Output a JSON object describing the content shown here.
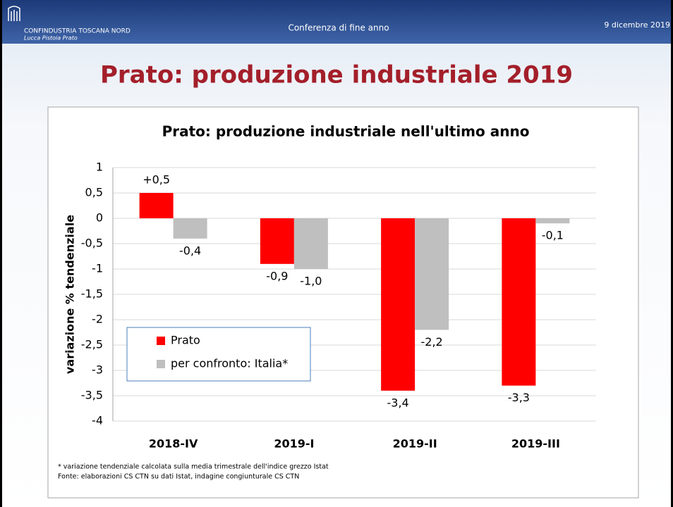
{
  "header": {
    "logo_line1": "CONFINDUSTRIA TOSCANA NORD",
    "logo_line2": "Lucca Pistoia Prato",
    "event": "Conferenza di fine anno",
    "date": "9 dicembre 2019"
  },
  "slide_title": "Prato: produzione industriale 2019",
  "footnotes": [
    "* variazione tendenziale calcolata sulla media trimestrale dell'indice grezzo Istat",
    "Fonte: elaborazioni CS CTN su dati Istat, indagine congiunturale CS CTN"
  ],
  "chart_data": {
    "type": "bar",
    "title": "Prato: produzione industriale nell'ultimo anno",
    "y_label": "variazione % tendenziale",
    "categories": [
      "2018-IV",
      "2019-I",
      "2019-II",
      "2019-III"
    ],
    "series": [
      {
        "name": "Prato",
        "color": "#ff0000",
        "values": [
          0.5,
          -0.9,
          -3.4,
          -3.3
        ],
        "value_labels": [
          "+0,5",
          "-0,9",
          "-3,4",
          "-3,3"
        ]
      },
      {
        "name": "per confronto: Italia*",
        "color": "#bfbfbf",
        "values": [
          -0.4,
          -1.0,
          -2.2,
          -0.1
        ],
        "value_labels": [
          "-0,4",
          "-1,0",
          "-2,2",
          "-0,1"
        ]
      }
    ],
    "ylim": [
      -4,
      1
    ],
    "yticks": [
      1,
      {
        "value": 0.5,
        "label": "0,5"
      },
      0,
      {
        "value": -0.5,
        "label": "-0,5"
      },
      -1,
      {
        "value": -1.5,
        "label": "-1,5"
      },
      -2,
      {
        "value": -2.5,
        "label": "-2,5"
      },
      -3,
      {
        "value": -3.5,
        "label": "-3,5"
      },
      -4
    ],
    "grid": true,
    "legend": "lower left"
  }
}
